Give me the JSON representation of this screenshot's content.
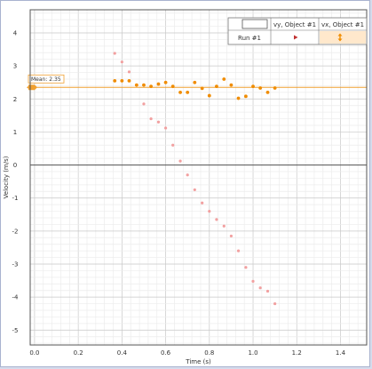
{
  "colors": {
    "vy": "#f08c00",
    "vx": "#f2a0a0",
    "mean": "#f0a030",
    "legend_highlight": "#ffe8cc",
    "play_marker": "#c03030"
  },
  "legend": {
    "header_vy": "vy, Object #1",
    "header_vx": "vx, Object #1",
    "row_label": "Run #1"
  },
  "mean_label": "Mean: 2.35",
  "chart_data": {
    "type": "scatter",
    "xlabel": "Time (s)",
    "ylabel": "Velocity (m/s)",
    "xlim": [
      -0.02,
      1.52
    ],
    "ylim": [
      -5.45,
      4.7
    ],
    "x_ticks": [
      "0.0",
      "0.2",
      "0.4",
      "0.6",
      "0.8",
      "1.0",
      "1.2",
      "1.4"
    ],
    "y_ticks": [
      "4",
      "3",
      "2",
      "1",
      "0",
      "-1",
      "-2",
      "-3",
      "-4",
      "-5"
    ],
    "grid": true,
    "legend_position": "top-right",
    "mean_line": 2.35,
    "series": [
      {
        "name": "vy, Object #1",
        "x": [
          0.367,
          0.4,
          0.433,
          0.467,
          0.5,
          0.533,
          0.567,
          0.6,
          0.633,
          0.667,
          0.7,
          0.733,
          0.767,
          0.8,
          0.833,
          0.867,
          0.9,
          0.933,
          0.967,
          1.0,
          1.033,
          1.067,
          1.1
        ],
        "values": [
          2.55,
          2.55,
          2.55,
          2.42,
          2.42,
          2.38,
          2.45,
          2.5,
          2.38,
          2.2,
          2.2,
          2.5,
          2.32,
          2.1,
          2.38,
          2.6,
          2.42,
          2.02,
          2.08,
          2.38,
          2.33,
          2.2,
          2.33
        ]
      },
      {
        "name": "vx, Object #1",
        "x": [
          0.367,
          0.4,
          0.433,
          0.467,
          0.5,
          0.533,
          0.567,
          0.6,
          0.633,
          0.667,
          0.7,
          0.733,
          0.767,
          0.8,
          0.833,
          0.867,
          0.9,
          0.933,
          0.967,
          1.0,
          1.033,
          1.067,
          1.1
        ],
        "values": [
          3.38,
          3.12,
          2.82,
          2.42,
          1.85,
          1.4,
          1.3,
          1.12,
          0.6,
          0.12,
          -0.3,
          -0.75,
          -1.15,
          -1.4,
          -1.65,
          -1.85,
          -2.15,
          -2.6,
          -3.1,
          -3.52,
          -3.72,
          -3.82,
          -4.2
        ]
      }
    ]
  }
}
